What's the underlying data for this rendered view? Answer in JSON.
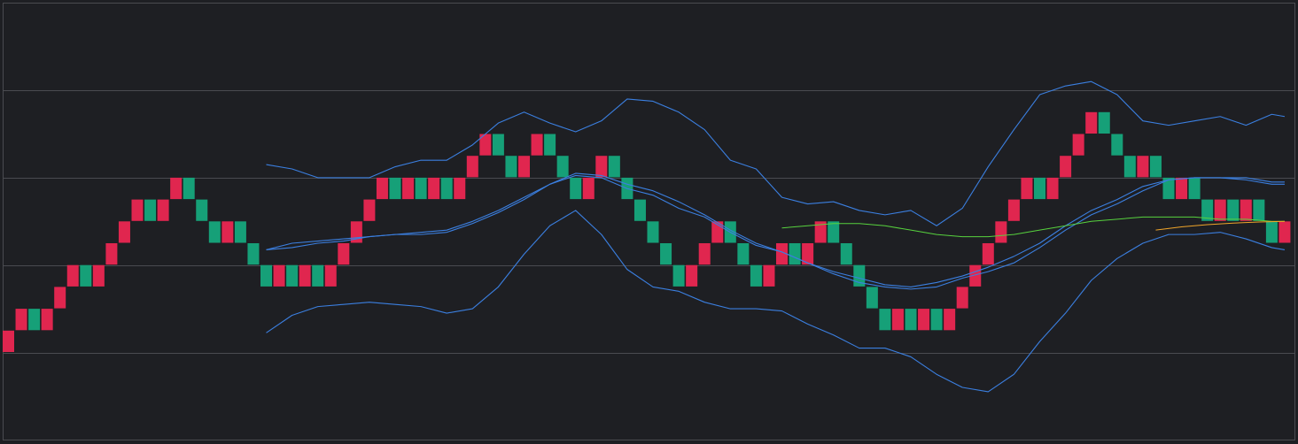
{
  "chart_data": {
    "type": "renko",
    "title": "",
    "xlabel": "",
    "ylabel": "",
    "ylim": [
      0,
      20
    ],
    "grid": true,
    "grid_y": [
      0,
      4,
      8,
      12,
      16,
      20
    ],
    "colors": {
      "background": "#1e1f23",
      "grid": "#4a4b50",
      "up_brick": "#e0264f",
      "down_brick": "#16a078",
      "bollinger": "#3b7fe0",
      "ma_green": "#57d23e",
      "ma_orange": "#f0a52a"
    },
    "bricks": [
      {
        "i": 0,
        "low": 4,
        "high": 5,
        "dir": "up"
      },
      {
        "i": 1,
        "low": 5,
        "high": 6,
        "dir": "up"
      },
      {
        "i": 2,
        "low": 5,
        "high": 6,
        "dir": "down"
      },
      {
        "i": 3,
        "low": 5,
        "high": 6,
        "dir": "up"
      },
      {
        "i": 4,
        "low": 6,
        "high": 7,
        "dir": "up"
      },
      {
        "i": 5,
        "low": 7,
        "high": 8,
        "dir": "up"
      },
      {
        "i": 6,
        "low": 7,
        "high": 8,
        "dir": "down"
      },
      {
        "i": 7,
        "low": 7,
        "high": 8,
        "dir": "up"
      },
      {
        "i": 8,
        "low": 8,
        "high": 9,
        "dir": "up"
      },
      {
        "i": 9,
        "low": 9,
        "high": 10,
        "dir": "up"
      },
      {
        "i": 10,
        "low": 10,
        "high": 11,
        "dir": "up"
      },
      {
        "i": 11,
        "low": 10,
        "high": 11,
        "dir": "down"
      },
      {
        "i": 12,
        "low": 10,
        "high": 11,
        "dir": "up"
      },
      {
        "i": 13,
        "low": 11,
        "high": 12,
        "dir": "up"
      },
      {
        "i": 14,
        "low": 11,
        "high": 12,
        "dir": "down"
      },
      {
        "i": 15,
        "low": 10,
        "high": 11,
        "dir": "down"
      },
      {
        "i": 16,
        "low": 9,
        "high": 10,
        "dir": "down"
      },
      {
        "i": 17,
        "low": 9,
        "high": 10,
        "dir": "up"
      },
      {
        "i": 18,
        "low": 9,
        "high": 10,
        "dir": "down"
      },
      {
        "i": 19,
        "low": 8,
        "high": 9,
        "dir": "down"
      },
      {
        "i": 20,
        "low": 7,
        "high": 8,
        "dir": "down"
      },
      {
        "i": 21,
        "low": 7,
        "high": 8,
        "dir": "up"
      },
      {
        "i": 22,
        "low": 7,
        "high": 8,
        "dir": "down"
      },
      {
        "i": 23,
        "low": 7,
        "high": 8,
        "dir": "up"
      },
      {
        "i": 24,
        "low": 7,
        "high": 8,
        "dir": "down"
      },
      {
        "i": 25,
        "low": 7,
        "high": 8,
        "dir": "up"
      },
      {
        "i": 26,
        "low": 8,
        "high": 9,
        "dir": "up"
      },
      {
        "i": 27,
        "low": 9,
        "high": 10,
        "dir": "up"
      },
      {
        "i": 28,
        "low": 10,
        "high": 11,
        "dir": "up"
      },
      {
        "i": 29,
        "low": 11,
        "high": 12,
        "dir": "up"
      },
      {
        "i": 30,
        "low": 11,
        "high": 12,
        "dir": "down"
      },
      {
        "i": 31,
        "low": 11,
        "high": 12,
        "dir": "up"
      },
      {
        "i": 32,
        "low": 11,
        "high": 12,
        "dir": "down"
      },
      {
        "i": 33,
        "low": 11,
        "high": 12,
        "dir": "up"
      },
      {
        "i": 34,
        "low": 11,
        "high": 12,
        "dir": "down"
      },
      {
        "i": 35,
        "low": 11,
        "high": 12,
        "dir": "up"
      },
      {
        "i": 36,
        "low": 12,
        "high": 13,
        "dir": "up"
      },
      {
        "i": 37,
        "low": 13,
        "high": 14,
        "dir": "up"
      },
      {
        "i": 38,
        "low": 13,
        "high": 14,
        "dir": "down"
      },
      {
        "i": 39,
        "low": 12,
        "high": 13,
        "dir": "down"
      },
      {
        "i": 40,
        "low": 12,
        "high": 13,
        "dir": "up"
      },
      {
        "i": 41,
        "low": 13,
        "high": 14,
        "dir": "up"
      },
      {
        "i": 42,
        "low": 13,
        "high": 14,
        "dir": "down"
      },
      {
        "i": 43,
        "low": 12,
        "high": 13,
        "dir": "down"
      },
      {
        "i": 44,
        "low": 11,
        "high": 12,
        "dir": "down"
      },
      {
        "i": 45,
        "low": 11,
        "high": 12,
        "dir": "up"
      },
      {
        "i": 46,
        "low": 12,
        "high": 13,
        "dir": "up"
      },
      {
        "i": 47,
        "low": 12,
        "high": 13,
        "dir": "down"
      },
      {
        "i": 48,
        "low": 11,
        "high": 12,
        "dir": "down"
      },
      {
        "i": 49,
        "low": 10,
        "high": 11,
        "dir": "down"
      },
      {
        "i": 50,
        "low": 9,
        "high": 10,
        "dir": "down"
      },
      {
        "i": 51,
        "low": 8,
        "high": 9,
        "dir": "down"
      },
      {
        "i": 52,
        "low": 7,
        "high": 8,
        "dir": "down"
      },
      {
        "i": 53,
        "low": 7,
        "high": 8,
        "dir": "up"
      },
      {
        "i": 54,
        "low": 8,
        "high": 9,
        "dir": "up"
      },
      {
        "i": 55,
        "low": 9,
        "high": 10,
        "dir": "up"
      },
      {
        "i": 56,
        "low": 9,
        "high": 10,
        "dir": "down"
      },
      {
        "i": 57,
        "low": 8,
        "high": 9,
        "dir": "down"
      },
      {
        "i": 58,
        "low": 7,
        "high": 8,
        "dir": "down"
      },
      {
        "i": 59,
        "low": 7,
        "high": 8,
        "dir": "up"
      },
      {
        "i": 60,
        "low": 8,
        "high": 9,
        "dir": "up"
      },
      {
        "i": 61,
        "low": 8,
        "high": 9,
        "dir": "down"
      },
      {
        "i": 62,
        "low": 8,
        "high": 9,
        "dir": "up"
      },
      {
        "i": 63,
        "low": 9,
        "high": 10,
        "dir": "up"
      },
      {
        "i": 64,
        "low": 9,
        "high": 10,
        "dir": "down"
      },
      {
        "i": 65,
        "low": 8,
        "high": 9,
        "dir": "down"
      },
      {
        "i": 66,
        "low": 7,
        "high": 8,
        "dir": "down"
      },
      {
        "i": 67,
        "low": 6,
        "high": 7,
        "dir": "down"
      },
      {
        "i": 68,
        "low": 5,
        "high": 6,
        "dir": "down"
      },
      {
        "i": 69,
        "low": 5,
        "high": 6,
        "dir": "up"
      },
      {
        "i": 70,
        "low": 5,
        "high": 6,
        "dir": "down"
      },
      {
        "i": 71,
        "low": 5,
        "high": 6,
        "dir": "up"
      },
      {
        "i": 72,
        "low": 5,
        "high": 6,
        "dir": "down"
      },
      {
        "i": 73,
        "low": 5,
        "high": 6,
        "dir": "up"
      },
      {
        "i": 74,
        "low": 6,
        "high": 7,
        "dir": "up"
      },
      {
        "i": 75,
        "low": 7,
        "high": 8,
        "dir": "up"
      },
      {
        "i": 76,
        "low": 8,
        "high": 9,
        "dir": "up"
      },
      {
        "i": 77,
        "low": 9,
        "high": 10,
        "dir": "up"
      },
      {
        "i": 78,
        "low": 10,
        "high": 11,
        "dir": "up"
      },
      {
        "i": 79,
        "low": 11,
        "high": 12,
        "dir": "up"
      },
      {
        "i": 80,
        "low": 11,
        "high": 12,
        "dir": "down"
      },
      {
        "i": 81,
        "low": 11,
        "high": 12,
        "dir": "up"
      },
      {
        "i": 82,
        "low": 12,
        "high": 13,
        "dir": "up"
      },
      {
        "i": 83,
        "low": 13,
        "high": 14,
        "dir": "up"
      },
      {
        "i": 84,
        "low": 14,
        "high": 15,
        "dir": "up"
      },
      {
        "i": 85,
        "low": 14,
        "high": 15,
        "dir": "down"
      },
      {
        "i": 86,
        "low": 13,
        "high": 14,
        "dir": "down"
      },
      {
        "i": 87,
        "low": 12,
        "high": 13,
        "dir": "down"
      },
      {
        "i": 88,
        "low": 12,
        "high": 13,
        "dir": "up"
      },
      {
        "i": 89,
        "low": 12,
        "high": 13,
        "dir": "down"
      },
      {
        "i": 90,
        "low": 11,
        "high": 12,
        "dir": "down"
      },
      {
        "i": 91,
        "low": 11,
        "high": 12,
        "dir": "up"
      },
      {
        "i": 92,
        "low": 11,
        "high": 12,
        "dir": "down"
      },
      {
        "i": 93,
        "low": 10,
        "high": 11,
        "dir": "down"
      },
      {
        "i": 94,
        "low": 10,
        "high": 11,
        "dir": "up"
      },
      {
        "i": 95,
        "low": 10,
        "high": 11,
        "dir": "down"
      },
      {
        "i": 96,
        "low": 10,
        "high": 11,
        "dir": "up"
      },
      {
        "i": 97,
        "low": 10,
        "high": 11,
        "dir": "down"
      },
      {
        "i": 98,
        "low": 9,
        "high": 10,
        "dir": "down"
      },
      {
        "i": 99,
        "low": 9,
        "high": 10,
        "dir": "up"
      }
    ],
    "series": [
      {
        "key": "bb_upper",
        "x": [
          20,
          22,
          24,
          26,
          28,
          30,
          32,
          34,
          36,
          38,
          40,
          42,
          44,
          46,
          48,
          50,
          52,
          54,
          56,
          58,
          60,
          62,
          64,
          66,
          68,
          70,
          72,
          74,
          76,
          78,
          80,
          82,
          84,
          86,
          88,
          90,
          92,
          94,
          96,
          98,
          99
        ],
        "values": [
          12.6,
          12.4,
          12.0,
          12.0,
          12.0,
          12.5,
          12.8,
          12.8,
          13.5,
          14.5,
          15.0,
          14.5,
          14.1,
          14.6,
          15.6,
          15.5,
          15.0,
          14.2,
          12.8,
          12.4,
          11.1,
          10.8,
          10.9,
          10.5,
          10.3,
          10.5,
          9.8,
          10.6,
          12.5,
          14.2,
          15.8,
          16.2,
          16.4,
          15.8,
          14.6,
          14.4,
          14.6,
          14.8,
          14.4,
          14.9,
          14.8
        ]
      },
      {
        "key": "bb_middle",
        "x": [
          20,
          22,
          24,
          26,
          28,
          30,
          32,
          34,
          36,
          38,
          40,
          42,
          44,
          46,
          48,
          50,
          52,
          54,
          56,
          58,
          60,
          62,
          64,
          66,
          68,
          70,
          72,
          74,
          76,
          78,
          80,
          82,
          84,
          86,
          88,
          90,
          92,
          94,
          96,
          98,
          99
        ],
        "values": [
          8.7,
          9.0,
          9.1,
          9.2,
          9.3,
          9.4,
          9.5,
          9.6,
          10.0,
          10.5,
          11.1,
          11.7,
          12.1,
          12.0,
          11.5,
          11.2,
          10.6,
          10.2,
          9.5,
          8.9,
          8.6,
          8.1,
          7.6,
          7.2,
          7.0,
          6.9,
          7.0,
          7.4,
          7.7,
          8.1,
          8.8,
          9.6,
          10.3,
          10.8,
          11.4,
          11.9,
          12.0,
          12.0,
          12.0,
          11.8,
          11.8
        ]
      },
      {
        "key": "bb_lower",
        "x": [
          20,
          22,
          24,
          26,
          28,
          30,
          32,
          34,
          36,
          38,
          40,
          42,
          44,
          46,
          48,
          50,
          52,
          54,
          56,
          58,
          60,
          62,
          64,
          66,
          68,
          70,
          72,
          74,
          76,
          78,
          80,
          82,
          84,
          86,
          88,
          90,
          92,
          94,
          96,
          98,
          99
        ],
        "values": [
          4.9,
          5.7,
          6.1,
          6.2,
          6.3,
          6.2,
          6.1,
          5.8,
          6.0,
          7.0,
          8.5,
          9.8,
          10.5,
          9.4,
          7.8,
          7.0,
          6.8,
          6.3,
          6.0,
          6.0,
          5.9,
          5.3,
          4.8,
          4.2,
          4.2,
          3.8,
          3.0,
          2.4,
          2.2,
          3.0,
          4.5,
          5.8,
          7.3,
          8.3,
          9.0,
          9.4,
          9.4,
          9.5,
          9.2,
          8.8,
          8.7
        ]
      },
      {
        "key": "trend_blue",
        "x": [
          20,
          22,
          24,
          26,
          28,
          30,
          32,
          34,
          36,
          38,
          40,
          42,
          44,
          46,
          48,
          50,
          52,
          54,
          56,
          58,
          60,
          62,
          64,
          66,
          68,
          70,
          72,
          74,
          76,
          78,
          80,
          82,
          84,
          86,
          88,
          90,
          92,
          94,
          96,
          98,
          99
        ],
        "values": [
          8.7,
          8.8,
          9.0,
          9.1,
          9.3,
          9.4,
          9.4,
          9.5,
          9.9,
          10.4,
          11.0,
          11.7,
          12.2,
          12.1,
          11.7,
          11.4,
          10.9,
          10.3,
          9.6,
          9.0,
          8.6,
          8.1,
          7.7,
          7.4,
          7.1,
          7.0,
          7.2,
          7.5,
          7.9,
          8.4,
          9.0,
          9.8,
          10.5,
          11.0,
          11.6,
          11.9,
          12.0,
          12.0,
          11.9,
          11.7,
          11.7
        ]
      },
      {
        "key": "ma_green",
        "x": [
          60,
          62,
          64,
          66,
          68,
          70,
          72,
          74,
          76,
          78,
          80,
          82,
          84,
          86,
          88,
          90,
          92,
          94,
          96,
          98,
          99
        ],
        "values": [
          9.7,
          9.8,
          9.9,
          9.9,
          9.8,
          9.6,
          9.4,
          9.3,
          9.3,
          9.4,
          9.6,
          9.8,
          10.0,
          10.1,
          10.2,
          10.2,
          10.2,
          10.1,
          10.1,
          10.0,
          10.0
        ]
      },
      {
        "key": "ma_orange",
        "x": [
          89,
          91,
          93,
          95,
          97,
          99
        ],
        "values": [
          9.6,
          9.75,
          9.85,
          9.92,
          9.97,
          10.0
        ]
      }
    ]
  }
}
